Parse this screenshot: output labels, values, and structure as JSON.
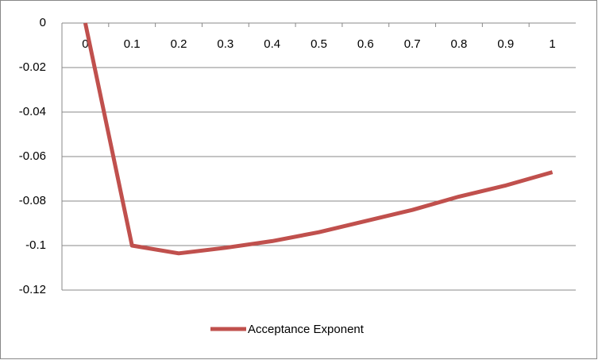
{
  "chart_data": {
    "type": "line",
    "categories": [
      "0",
      "0.1",
      "0.2",
      "0.3",
      "0.4",
      "0.5",
      "0.6",
      "0.7",
      "0.8",
      "0.9",
      "1"
    ],
    "series": [
      {
        "name": "Acceptance Exponent",
        "color": "#c0504d",
        "values": [
          0,
          -0.1,
          -0.1035,
          -0.101,
          -0.098,
          -0.094,
          -0.089,
          -0.084,
          -0.078,
          -0.073,
          -0.067
        ]
      }
    ],
    "ylim": [
      -0.12,
      0
    ],
    "yticks": [
      0,
      -0.02,
      -0.04,
      -0.06,
      -0.08,
      -0.1,
      -0.12
    ],
    "grid": true,
    "legend": "bottom"
  }
}
